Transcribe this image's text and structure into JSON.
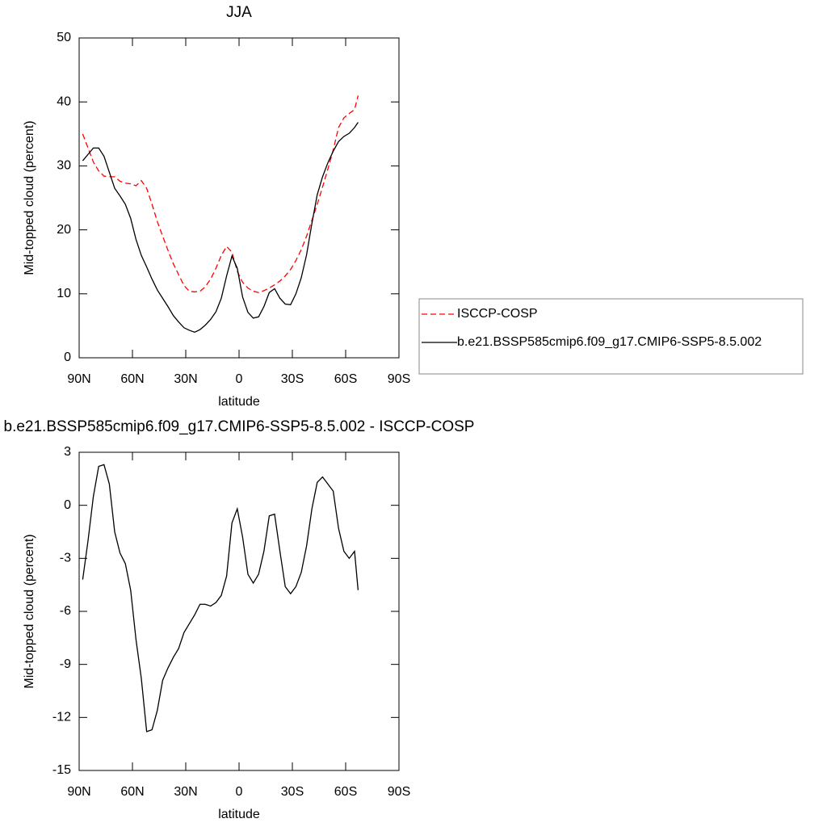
{
  "chart_data": [
    {
      "type": "line",
      "title": "JJA",
      "xlabel": "latitude",
      "ylabel": "Mid-topped cloud (percent)",
      "x": [
        88,
        85,
        82,
        79,
        76,
        73,
        70,
        67,
        64,
        61,
        58,
        55,
        52,
        49,
        46,
        43,
        40,
        37,
        34,
        31,
        28,
        25,
        22,
        19,
        16,
        13,
        10,
        7,
        4,
        1,
        -2,
        -5,
        -8,
        -11,
        -14,
        -17,
        -20,
        -23,
        -26,
        -29,
        -32,
        -35,
        -38,
        -41,
        -44,
        -47,
        -50,
        -53,
        -56,
        -59,
        -62,
        -65,
        -67
      ],
      "xlim": [
        90,
        -90
      ],
      "xticks": [
        {
          "value": 90,
          "label": "90N"
        },
        {
          "value": 60,
          "label": "60N"
        },
        {
          "value": 30,
          "label": "30N"
        },
        0,
        {
          "value": -30,
          "label": "30S"
        },
        {
          "value": -60,
          "label": "60S"
        },
        {
          "value": -90,
          "label": "90S"
        }
      ],
      "ylim": [
        0,
        50
      ],
      "yticks": [
        0,
        10,
        20,
        30,
        40,
        50
      ],
      "legend": "right",
      "series": [
        {
          "name": "ISCCP-COSP",
          "color": "#ff0000",
          "line_style": "dashed",
          "values": [
            35,
            32.8,
            30.6,
            29.2,
            28.4,
            28.3,
            28.3,
            27.6,
            27.3,
            27.2,
            26.9,
            27.7,
            26.5,
            24,
            21.3,
            19,
            16.8,
            14.7,
            13,
            11.3,
            10.4,
            10.3,
            10.4,
            11.1,
            12.3,
            14,
            16,
            17.4,
            16.5,
            13.5,
            11.8,
            10.9,
            10.4,
            10.2,
            10.5,
            10.9,
            11.4,
            12,
            12.8,
            13.8,
            15.2,
            16.9,
            19,
            21.5,
            24,
            26.7,
            29.5,
            32.5,
            36,
            37.5,
            38.2,
            38.8,
            41
          ]
        },
        {
          "name": "b.e21.BSSP585cmip6.f09_g17.CMIP6-SSP5-8.5.002",
          "color": "#000000",
          "line_style": "solid",
          "values": [
            30.8,
            31.8,
            32.8,
            32.8,
            31.5,
            29,
            26.5,
            25.3,
            24,
            21.8,
            18.5,
            16,
            14.2,
            12.3,
            10.6,
            9.3,
            8,
            6.6,
            5.6,
            4.7,
            4.3,
            4,
            4.4,
            5.1,
            6,
            7.2,
            9.3,
            12.8,
            15.9,
            14,
            9.5,
            7.1,
            6.2,
            6.4,
            8,
            10.2,
            10.8,
            9.3,
            8.4,
            8.3,
            10,
            12.5,
            16.1,
            21,
            25.5,
            28.3,
            30.5,
            32.3,
            33.8,
            34.6,
            35.1,
            36,
            36.8
          ]
        }
      ]
    },
    {
      "type": "line",
      "title": "b.e21.BSSP585cmip6.f09_g17.CMIP6-SSP5-8.5.002 - ISCCP-COSP",
      "xlabel": "latitude",
      "ylabel": "Mid-topped cloud (percent)",
      "x": [
        88,
        85,
        82,
        79,
        76,
        73,
        70,
        67,
        64,
        61,
        58,
        55,
        52,
        49,
        46,
        43,
        40,
        37,
        34,
        31,
        28,
        25,
        22,
        19,
        16,
        13,
        10,
        7,
        4,
        1,
        -2,
        -5,
        -8,
        -11,
        -14,
        -17,
        -20,
        -23,
        -26,
        -29,
        -32,
        -35,
        -38,
        -41,
        -44,
        -47,
        -50,
        -53,
        -56,
        -59,
        -62,
        -65,
        -67
      ],
      "xlim": [
        90,
        -90
      ],
      "xticks": [
        {
          "value": 90,
          "label": "90N"
        },
        {
          "value": 60,
          "label": "60N"
        },
        {
          "value": 30,
          "label": "30N"
        },
        0,
        {
          "value": -30,
          "label": "30S"
        },
        {
          "value": -60,
          "label": "60S"
        },
        {
          "value": -90,
          "label": "90S"
        }
      ],
      "ylim": [
        -15,
        3
      ],
      "yticks": [
        -15,
        -12,
        -9,
        -6,
        -3,
        0,
        3
      ],
      "color": "#000000",
      "values": [
        -4.2,
        -2,
        0.5,
        2.2,
        2.3,
        1.2,
        -1.5,
        -2.7,
        -3.3,
        -4.8,
        -7.6,
        -9.8,
        -12.8,
        -12.7,
        -11.6,
        -9.9,
        -9.2,
        -8.6,
        -8.1,
        -7.2,
        -6.7,
        -6.2,
        -5.6,
        -5.6,
        -5.7,
        -5.5,
        -5.1,
        -4,
        -1,
        -0.2,
        -1.8,
        -3.9,
        -4.4,
        -3.9,
        -2.6,
        -0.6,
        -0.5,
        -2.6,
        -4.6,
        -5,
        -4.6,
        -3.8,
        -2.3,
        -0.2,
        1.3,
        1.6,
        1.2,
        0.8,
        -1.3,
        -2.6,
        -3,
        -2.6,
        -4.8
      ]
    }
  ]
}
